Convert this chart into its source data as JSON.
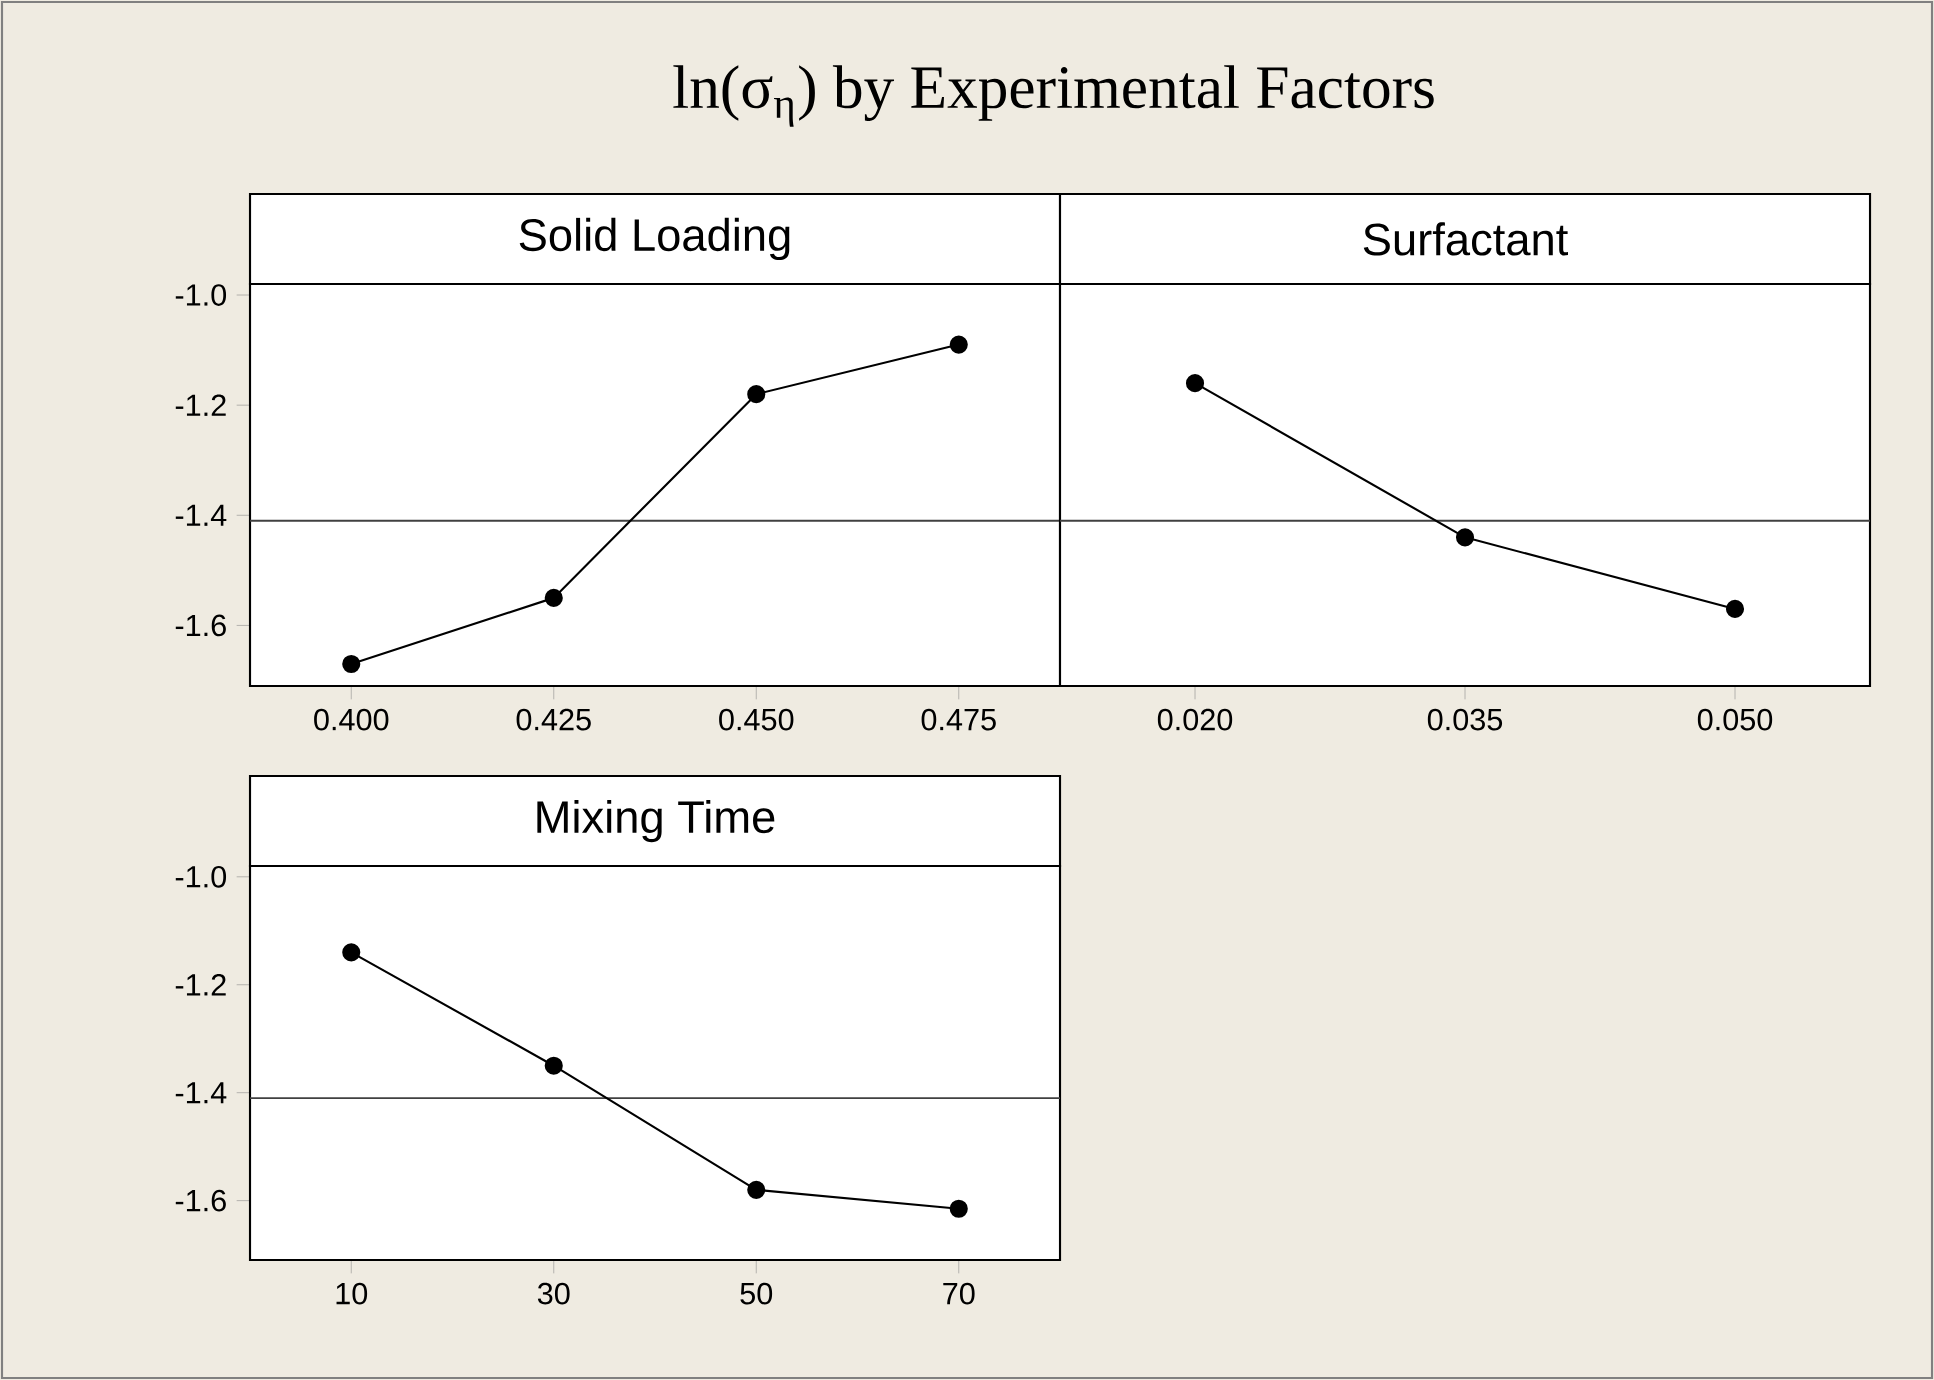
{
  "chart_data": [
    {
      "type": "line",
      "title": "ln(σ$_{η}$) by Experimental Factors",
      "subtitle": "Solid Loading",
      "x": [
        0.4,
        0.425,
        0.45,
        0.475
      ],
      "values": [
        -1.67,
        -1.55,
        -1.18,
        -1.09
      ],
      "color": "#000000",
      "marker": "circle",
      "xlim": [
        0.3875,
        0.4875
      ],
      "xticks": [
        {
          "value": 0.4,
          "label": "0.400"
        },
        0.425,
        {
          "value": 0.45,
          "label": "0.450"
        },
        0.475
      ],
      "ylim": [
        -1.71,
        -0.98
      ],
      "yticks": [
        {
          "value": -1.0,
          "label": "-1.0"
        },
        -1.2,
        -1.4,
        -1.6
      ],
      "ref_lines": [
        {
          "axis": "y",
          "value": -1.41
        }
      ]
    },
    {
      "type": "line",
      "subtitle": "Surfactant",
      "x": [
        0.02,
        0.035,
        0.05
      ],
      "values": [
        -1.16,
        -1.44,
        -1.57
      ],
      "color": "#000000",
      "marker": "circle",
      "xlim": [
        0.0125,
        0.0575
      ],
      "xticks": [
        {
          "value": 0.02,
          "label": "0.020"
        },
        0.035,
        {
          "value": 0.05,
          "label": "0.050"
        }
      ],
      "ylim": [
        -1.71,
        -0.98
      ],
      "tick_labels": "x",
      "ref_lines": [
        {
          "axis": "y",
          "value": -1.41
        }
      ]
    },
    {
      "type": "line",
      "subtitle": "Mixing Time",
      "x": [
        10,
        30,
        50,
        70
      ],
      "values": [
        -1.14,
        -1.35,
        -1.58,
        -1.615
      ],
      "color": "#000000",
      "marker": "circle",
      "xlim": [
        0,
        80
      ],
      "xticks": [
        10,
        30,
        50,
        70
      ],
      "ylim": [
        -1.71,
        -0.98
      ],
      "yticks": [
        {
          "value": -1.0,
          "label": "-1.0"
        },
        -1.2,
        -1.4,
        -1.6
      ],
      "ref_lines": [
        {
          "axis": "y",
          "value": -1.41
        }
      ]
    }
  ]
}
